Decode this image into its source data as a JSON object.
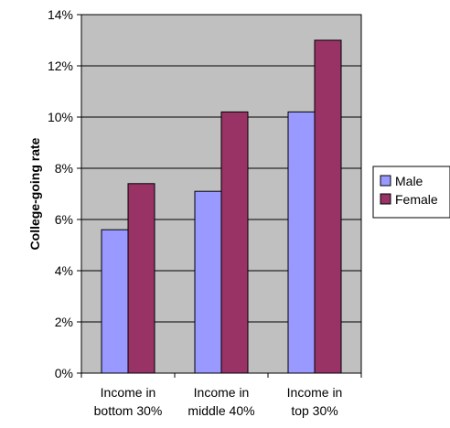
{
  "chart_data": {
    "type": "bar",
    "title": "",
    "xlabel": "",
    "ylabel": "College-going rate",
    "ylim": [
      0,
      14
    ],
    "y_ticks": [
      0,
      2,
      4,
      6,
      8,
      10,
      12,
      14
    ],
    "y_tick_suffix": "%",
    "grid": true,
    "legend_position": "right",
    "categories": [
      [
        "Income in",
        "bottom 30%"
      ],
      [
        "Income in",
        "middle 40%"
      ],
      [
        "Income in",
        "top 30%"
      ]
    ],
    "series": [
      {
        "name": "Male",
        "color": "#9999ff",
        "values": [
          5.6,
          7.1,
          10.2
        ]
      },
      {
        "name": "Female",
        "color": "#993366",
        "values": [
          7.4,
          10.2,
          13.0
        ]
      }
    ],
    "plot_background": "#c0c0c0"
  }
}
